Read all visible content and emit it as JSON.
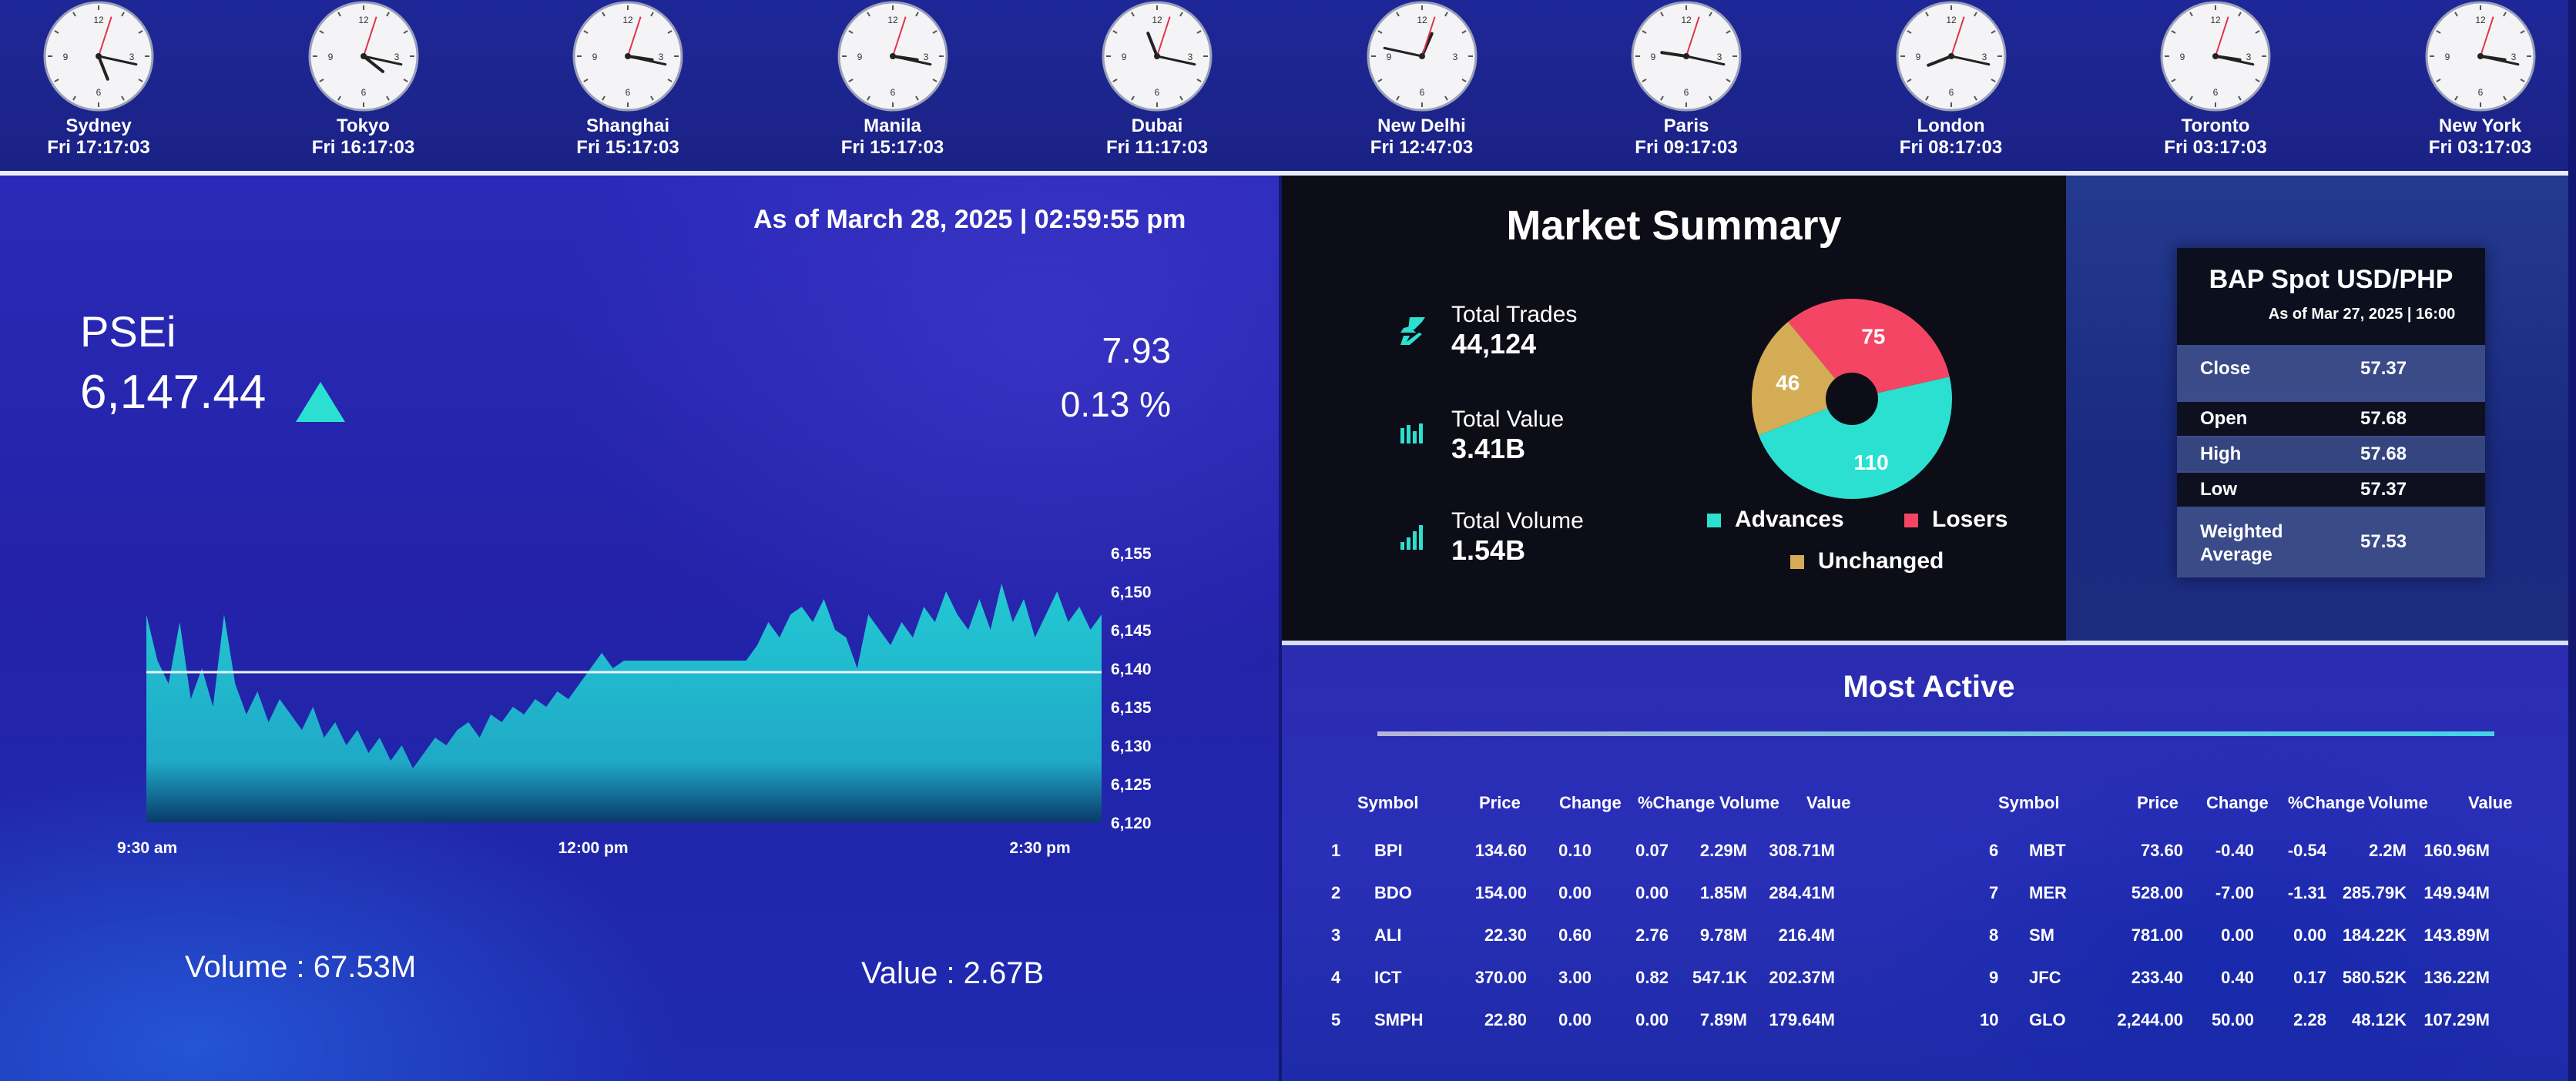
{
  "clocks": [
    {
      "city": "Sydney",
      "time": "Fri 17:17:03",
      "h": 17,
      "m": 17,
      "s": 3
    },
    {
      "city": "Tokyo",
      "time": "Fri 16:17:03",
      "h": 16,
      "m": 17,
      "s": 3
    },
    {
      "city": "Shanghai",
      "time": "Fri 15:17:03",
      "h": 15,
      "m": 17,
      "s": 3
    },
    {
      "city": "Manila",
      "time": "Fri 15:17:03",
      "h": 15,
      "m": 17,
      "s": 3
    },
    {
      "city": "Dubai",
      "time": "Fri 11:17:03",
      "h": 11,
      "m": 17,
      "s": 3
    },
    {
      "city": "New Delhi",
      "time": "Fri 12:47:03",
      "h": 12,
      "m": 47,
      "s": 3
    },
    {
      "city": "Paris",
      "time": "Fri 09:17:03",
      "h": 9,
      "m": 17,
      "s": 3
    },
    {
      "city": "London",
      "time": "Fri 08:17:03",
      "h": 8,
      "m": 17,
      "s": 3
    },
    {
      "city": "Toronto",
      "time": "Fri 03:17:03",
      "h": 3,
      "m": 17,
      "s": 3
    },
    {
      "city": "New York",
      "time": "Fri 03:17:03",
      "h": 3,
      "m": 17,
      "s": 3
    }
  ],
  "clock_numerals": [
    "12",
    "3",
    "6",
    "9"
  ],
  "psei": {
    "as_of": "As of March 28, 2025 | 02:59:55 pm",
    "name": "PSEi",
    "value": "6,147.44",
    "change": "7.93",
    "percent_change": "0.13 %",
    "volume": "Volume : 67.53M",
    "value_traded": "Value : 2.67B"
  },
  "chart_data": {
    "type": "area",
    "x_ticks": [
      "9:30 am",
      "12:00 pm",
      "2:30 pm"
    ],
    "y_ticks": [
      "6,155",
      "6,150",
      "6,145",
      "6,140",
      "6,135",
      "6,130",
      "6,125",
      "6,120"
    ],
    "ylim": [
      6120,
      6155
    ],
    "reference_line": 6139.5,
    "values": [
      6147,
      6141,
      6138,
      6146,
      6136,
      6140,
      6135,
      6147,
      6138,
      6134,
      6137,
      6133,
      6136,
      6134,
      6132,
      6135,
      6131,
      6133,
      6130,
      6132,
      6129,
      6131,
      6128,
      6130,
      6127,
      6129,
      6131,
      6130,
      6132,
      6133,
      6131,
      6134,
      6133,
      6135,
      6134,
      6136,
      6135,
      6137,
      6136,
      6138,
      6140,
      6142,
      6140,
      6141,
      6141,
      6141,
      6141,
      6141,
      6141,
      6141,
      6141,
      6141,
      6141,
      6141,
      6141,
      6143,
      6146,
      6144,
      6147,
      6148,
      6146,
      6149,
      6145,
      6144,
      6140,
      6147,
      6145,
      6143,
      6146,
      6144,
      6148,
      6146,
      6150,
      6147,
      6145,
      6149,
      6145,
      6151,
      6146,
      6149,
      6144,
      6147,
      6150,
      6146,
      6148,
      6145,
      6147
    ],
    "colors": {
      "fill": "#23c9d3",
      "line": "#e8f4ff"
    }
  },
  "summary": {
    "title": "Market Summary",
    "total_trades_label": "Total Trades",
    "total_trades": "44,124",
    "total_value_label": "Total Value",
    "total_value": "3.41B",
    "total_volume_label": "Total Volume",
    "total_volume": "1.54B",
    "pie": [
      {
        "label": "Advances",
        "value": 110,
        "display": "110",
        "color": "#2be0d0"
      },
      {
        "label": "Unchanged",
        "value": 46,
        "display": "46",
        "color": "#d4ac56"
      },
      {
        "label": "Losers",
        "value": 75,
        "display": "75",
        "color": "#f44664"
      }
    ],
    "legend": {
      "advances": "Advances",
      "losers": "Losers",
      "unchanged": "Unchanged"
    }
  },
  "bap": {
    "title": "BAP Spot USD/PHP",
    "subtitle": "As of Mar 27, 2025 | 16:00",
    "close_label": "Close",
    "close": "57.37",
    "open_label": "Open",
    "open": "57.68",
    "high_label": "High",
    "high": "57.68",
    "low_label": "Low",
    "low": "57.37",
    "wavg_label1": "Weighted",
    "wavg_label2": "Average",
    "wavg": "57.53"
  },
  "most_active": {
    "title": "Most Active",
    "headers": [
      "Symbol",
      "Price",
      "Change",
      "%Change",
      "Volume",
      "Value"
    ],
    "left": [
      {
        "rank": "1",
        "symbol": "BPI",
        "price": "134.60",
        "change": "0.10",
        "pct": "0.07",
        "volume": "2.29M",
        "value": "308.71M"
      },
      {
        "rank": "2",
        "symbol": "BDO",
        "price": "154.00",
        "change": "0.00",
        "pct": "0.00",
        "volume": "1.85M",
        "value": "284.41M"
      },
      {
        "rank": "3",
        "symbol": "ALI",
        "price": "22.30",
        "change": "0.60",
        "pct": "2.76",
        "volume": "9.78M",
        "value": "216.4M"
      },
      {
        "rank": "4",
        "symbol": "ICT",
        "price": "370.00",
        "change": "3.00",
        "pct": "0.82",
        "volume": "547.1K",
        "value": "202.37M"
      },
      {
        "rank": "5",
        "symbol": "SMPH",
        "price": "22.80",
        "change": "0.00",
        "pct": "0.00",
        "volume": "7.89M",
        "value": "179.64M"
      }
    ],
    "right": [
      {
        "rank": "6",
        "symbol": "MBT",
        "price": "73.60",
        "change": "-0.40",
        "pct": "-0.54",
        "volume": "2.2M",
        "value": "160.96M"
      },
      {
        "rank": "7",
        "symbol": "MER",
        "price": "528.00",
        "change": "-7.00",
        "pct": "-1.31",
        "volume": "285.79K",
        "value": "149.94M"
      },
      {
        "rank": "8",
        "symbol": "SM",
        "price": "781.00",
        "change": "0.00",
        "pct": "0.00",
        "volume": "184.22K",
        "value": "143.89M"
      },
      {
        "rank": "9",
        "symbol": "JFC",
        "price": "233.40",
        "change": "0.40",
        "pct": "0.17",
        "volume": "580.52K",
        "value": "136.22M"
      },
      {
        "rank": "10",
        "symbol": "GLO",
        "price": "2,244.00",
        "change": "50.00",
        "pct": "2.28",
        "volume": "48.12K",
        "value": "107.29M"
      }
    ]
  }
}
